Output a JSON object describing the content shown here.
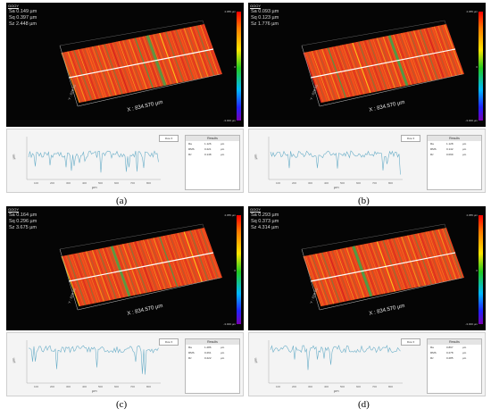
{
  "app_label": "GOOY",
  "x_axis_label": "X : 834.570 µm",
  "y_axis_label": "Y : 626.00",
  "scale_bar_ticks": [
    "4.055 µm",
    "0",
    "-3.000 µm"
  ],
  "profile_chart": {
    "xlabel": "µm",
    "ylabel": "µm",
    "x_ticks": [
      "100",
      "200",
      "300",
      "400",
      "500",
      "600",
      "700",
      "800"
    ],
    "series_dropdown": "Row ▾",
    "results_title": "Results"
  },
  "panels": [
    {
      "id": "a",
      "caption": "(a)",
      "stats": [
        "Sa 0.149 µm",
        "Sq 0.397 µm",
        "Sz 2.448 µm"
      ],
      "results": [
        [
          "Ra",
          "1.126",
          "µm"
        ],
        [
          "RMS",
          "0.221",
          "µm"
        ],
        [
          "Rz",
          "0.148",
          "µm"
        ]
      ]
    },
    {
      "id": "b",
      "caption": "(b)",
      "stats": [
        "Sa 0.093 µm",
        "Sq 0.123 µm",
        "Sz 1.776 µm"
      ],
      "results": [
        [
          "Ra",
          "1.128",
          "µm"
        ],
        [
          "RMS",
          "0.142",
          "µm"
        ],
        [
          "Rz",
          "0.099",
          "µm"
        ]
      ]
    },
    {
      "id": "c",
      "caption": "(c)",
      "stats": [
        "Sa 0.164 µm",
        "Sq 0.296 µm",
        "Sz 3.675 µm"
      ],
      "results": [
        [
          "Ra",
          "1.286",
          "µm"
        ],
        [
          "RMS",
          "0.261",
          "µm"
        ],
        [
          "Rz",
          "0.222",
          "µm"
        ]
      ]
    },
    {
      "id": "d",
      "caption": "(d)",
      "stats": [
        "Sa 0.293 µm",
        "Sq 0.373 µm",
        "Sz 4.314 µm"
      ],
      "results": [
        [
          "Ra",
          "0.897",
          "µm"
        ],
        [
          "RMS",
          "0.278",
          "µm"
        ],
        [
          "Rz",
          "0.285",
          "µm"
        ]
      ]
    }
  ],
  "colors": {
    "surface_red": "#e8431e",
    "surface_orange": "#f39a1b",
    "surface_green": "#3aa94a",
    "profile_line": "#6aaec8"
  }
}
